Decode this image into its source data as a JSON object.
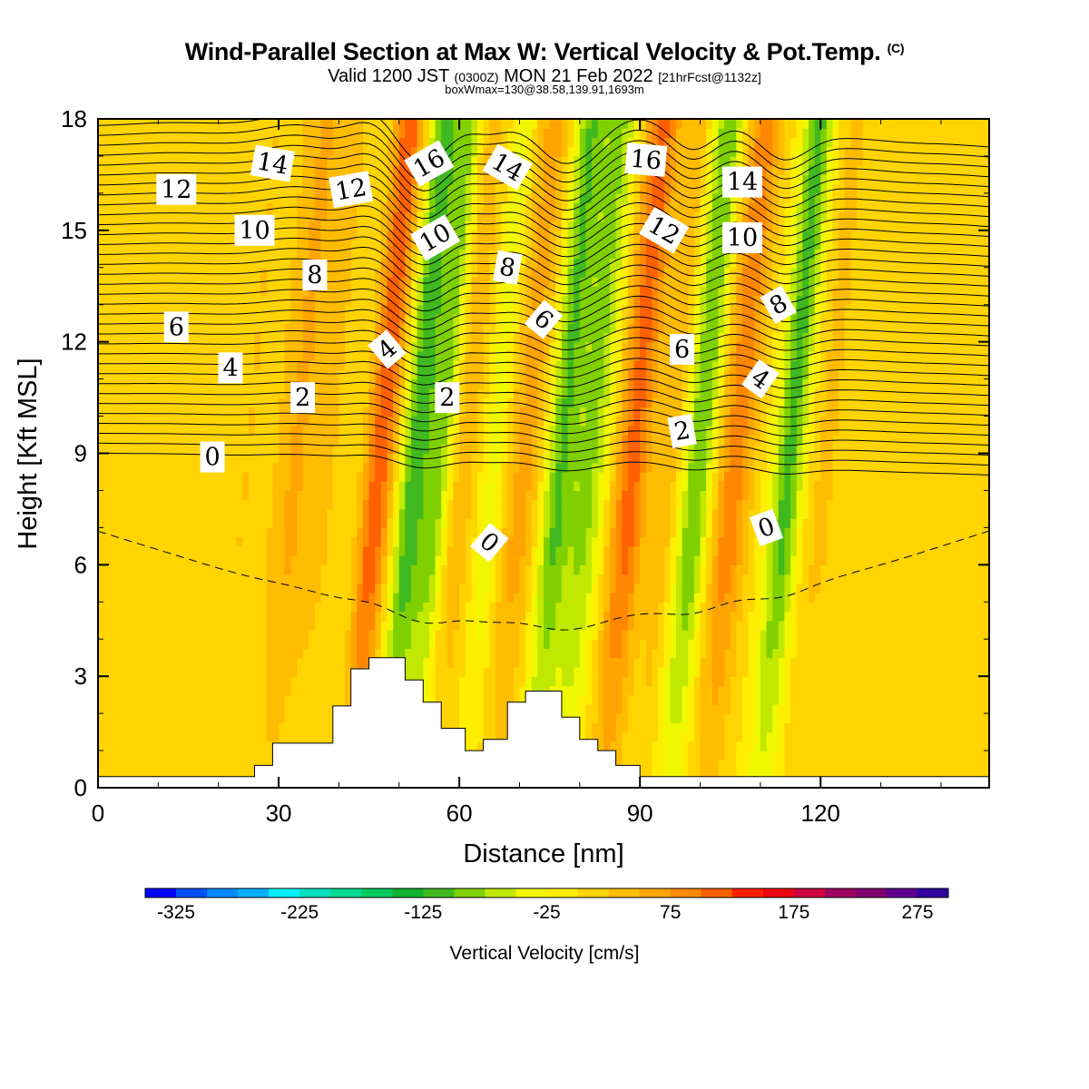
{
  "header": {
    "title": "Wind-Parallel Section at Max W: Vertical Velocity & Pot.Temp.",
    "copyright": "(C)",
    "valid_prefix": "Valid 1200 JST",
    "valid_utc": "(0300Z)",
    "valid_date": "MON 21 Feb 2022",
    "forecast": "[21hrFcst@1132z]",
    "box_info": "boxWmax=130@38.58,139.91,1693m"
  },
  "chart_data": {
    "type": "heatmap",
    "xlabel": "Distance [nm]",
    "ylabel": "Height [Kft MSL]",
    "xlim": [
      0,
      148
    ],
    "ylim": [
      0,
      18
    ],
    "x_ticks": [
      "0",
      "30",
      "60",
      "90",
      "120"
    ],
    "y_ticks": [
      "0",
      "3",
      "6",
      "9",
      "12",
      "15",
      "18"
    ],
    "colorbar": {
      "label": "Vertical Velocity [cm/s]",
      "tick_labels": [
        "-325",
        "-225",
        "-125",
        "-25",
        "75",
        "175",
        "275"
      ],
      "min": -350,
      "max": 300,
      "step": 25,
      "colors": [
        "#0000ff",
        "#0050ff",
        "#0088ff",
        "#00b0ff",
        "#00f0ff",
        "#00e0c0",
        "#00d890",
        "#00c860",
        "#10b030",
        "#40b820",
        "#80d000",
        "#c0e800",
        "#f0f800",
        "#ffee00",
        "#ffd400",
        "#ffbc00",
        "#ffa400",
        "#ff8800",
        "#ff6000",
        "#ff2000",
        "#ee0010",
        "#cc0040",
        "#a00060",
        "#800070",
        "#600090",
        "#3000a0"
      ]
    },
    "background_velocity": 0,
    "velocity_bands": [
      {
        "x": 7,
        "w": 4,
        "v": 20
      },
      {
        "x": 20,
        "w": 5,
        "v": 25
      },
      {
        "x": 28,
        "w": 3,
        "v": 50
      },
      {
        "x": 33,
        "w": 3,
        "v": 30
      },
      {
        "x": 42,
        "w": 2.5,
        "v": 120
      },
      {
        "x": 48,
        "w": 2.5,
        "v": -120
      },
      {
        "x": 52,
        "w": 2,
        "v": -80
      },
      {
        "x": 56,
        "w": 2.5,
        "v": 40
      },
      {
        "x": 61,
        "w": 2,
        "v": -40
      },
      {
        "x": 66,
        "w": 3,
        "v": 60
      },
      {
        "x": 72,
        "w": 2.5,
        "v": -100
      },
      {
        "x": 77,
        "w": 3,
        "v": -80
      },
      {
        "x": 84,
        "w": 3,
        "v": 110
      },
      {
        "x": 90,
        "w": 2,
        "v": 40
      },
      {
        "x": 95,
        "w": 2.5,
        "v": -100
      },
      {
        "x": 101,
        "w": 3,
        "v": 90
      },
      {
        "x": 110,
        "w": 2.5,
        "v": -110
      },
      {
        "x": 116,
        "w": 3,
        "v": 30
      },
      {
        "x": 124,
        "w": 3,
        "v": 20
      },
      {
        "x": 136,
        "w": 4,
        "v": 15
      }
    ],
    "terrain": [
      {
        "x": 0,
        "h": 0.3
      },
      {
        "x": 26,
        "h": 0.3
      },
      {
        "x": 26,
        "h": 0.6
      },
      {
        "x": 29,
        "h": 0.6
      },
      {
        "x": 29,
        "h": 1.2
      },
      {
        "x": 39,
        "h": 1.2
      },
      {
        "x": 39,
        "h": 2.2
      },
      {
        "x": 42,
        "h": 2.2
      },
      {
        "x": 42,
        "h": 3.2
      },
      {
        "x": 45,
        "h": 3.2
      },
      {
        "x": 45,
        "h": 3.5
      },
      {
        "x": 51,
        "h": 3.5
      },
      {
        "x": 51,
        "h": 2.9
      },
      {
        "x": 54,
        "h": 2.9
      },
      {
        "x": 54,
        "h": 2.3
      },
      {
        "x": 57,
        "h": 2.3
      },
      {
        "x": 57,
        "h": 1.6
      },
      {
        "x": 61,
        "h": 1.6
      },
      {
        "x": 61,
        "h": 1.0
      },
      {
        "x": 64,
        "h": 1.0
      },
      {
        "x": 64,
        "h": 1.3
      },
      {
        "x": 68,
        "h": 1.3
      },
      {
        "x": 68,
        "h": 2.3
      },
      {
        "x": 71,
        "h": 2.3
      },
      {
        "x": 71,
        "h": 2.6
      },
      {
        "x": 77,
        "h": 2.6
      },
      {
        "x": 77,
        "h": 1.9
      },
      {
        "x": 80,
        "h": 1.9
      },
      {
        "x": 80,
        "h": 1.3
      },
      {
        "x": 83,
        "h": 1.3
      },
      {
        "x": 83,
        "h": 1.0
      },
      {
        "x": 86,
        "h": 1.0
      },
      {
        "x": 86,
        "h": 0.6
      },
      {
        "x": 90,
        "h": 0.6
      },
      {
        "x": 90,
        "h": 0.3
      },
      {
        "x": 148,
        "h": 0.3
      }
    ],
    "theta_contours": {
      "solid_lines": 34,
      "solid_heights": [
        9.0,
        17.8
      ],
      "dashed_heights": [
        6.9
      ]
    },
    "contour_labels": [
      {
        "text": "12",
        "x": 13,
        "y": 16.1,
        "rot": 0
      },
      {
        "text": "14",
        "x": 29,
        "y": 16.8,
        "rot": 10
      },
      {
        "text": "12",
        "x": 42,
        "y": 16.1,
        "rot": -10
      },
      {
        "text": "16",
        "x": 55,
        "y": 16.8,
        "rot": -30
      },
      {
        "text": "14",
        "x": 68,
        "y": 16.7,
        "rot": 30
      },
      {
        "text": "16",
        "x": 91,
        "y": 16.9,
        "rot": 5
      },
      {
        "text": "14",
        "x": 107,
        "y": 16.3,
        "rot": 0
      },
      {
        "text": "10",
        "x": 26,
        "y": 15.0,
        "rot": 0
      },
      {
        "text": "10",
        "x": 56,
        "y": 14.8,
        "rot": -30
      },
      {
        "text": "12",
        "x": 94,
        "y": 15.0,
        "rot": 30
      },
      {
        "text": "10",
        "x": 107,
        "y": 14.8,
        "rot": 0
      },
      {
        "text": "8",
        "x": 36,
        "y": 13.8,
        "rot": 0
      },
      {
        "text": "8",
        "x": 68,
        "y": 14.0,
        "rot": 10
      },
      {
        "text": "8",
        "x": 113,
        "y": 13.0,
        "rot": -30
      },
      {
        "text": "6",
        "x": 13,
        "y": 12.4,
        "rot": 0
      },
      {
        "text": "6",
        "x": 74,
        "y": 12.6,
        "rot": 40
      },
      {
        "text": "6",
        "x": 97,
        "y": 11.8,
        "rot": 0
      },
      {
        "text": "4",
        "x": 22,
        "y": 11.3,
        "rot": 0
      },
      {
        "text": "4",
        "x": 48,
        "y": 11.8,
        "rot": -40
      },
      {
        "text": "4",
        "x": 110,
        "y": 11.0,
        "rot": 35
      },
      {
        "text": "2",
        "x": 34,
        "y": 10.5,
        "rot": 0
      },
      {
        "text": "2",
        "x": 58,
        "y": 10.5,
        "rot": 0
      },
      {
        "text": "2",
        "x": 97,
        "y": 9.6,
        "rot": -10
      },
      {
        "text": "0",
        "x": 19,
        "y": 8.9,
        "rot": 0
      },
      {
        "text": "0",
        "x": 65,
        "y": 6.6,
        "rot": 40
      },
      {
        "text": "0",
        "x": 111,
        "y": 7.0,
        "rot": -20
      }
    ]
  }
}
